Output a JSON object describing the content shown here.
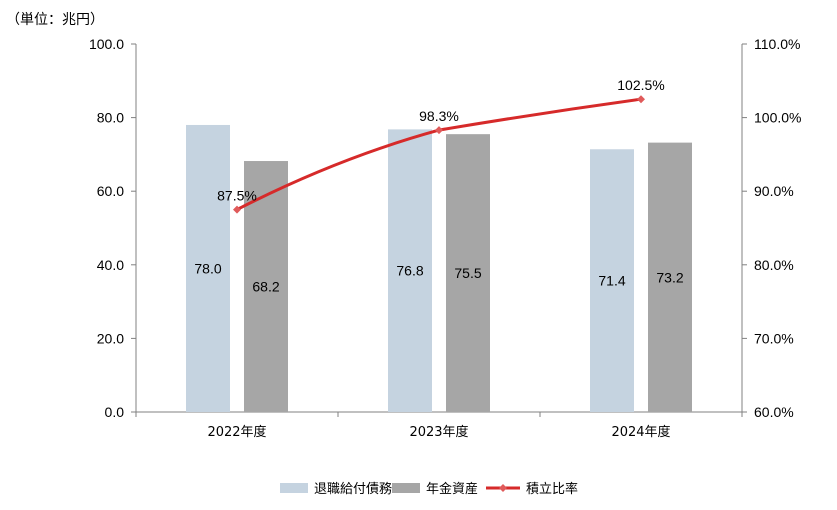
{
  "unit_label": "（単位：兆円）",
  "colors": {
    "series_a": "#c5d3e0",
    "series_b": "#a6a6a6",
    "line": "#d62a2a",
    "marker": "#e05a5a",
    "axis": "#808080",
    "grid": "#d9d9d9"
  },
  "chart_data": {
    "type": "bar+line",
    "categories": [
      "2022年度",
      "2023年度",
      "2024年度"
    ],
    "series": [
      {
        "name": "退職給付債務",
        "values": [
          78.0,
          76.8,
          71.4
        ],
        "axis": "left",
        "type": "bar"
      },
      {
        "name": "年金資産",
        "values": [
          68.2,
          75.5,
          73.2
        ],
        "axis": "left",
        "type": "bar"
      },
      {
        "name": "積立比率",
        "values": [
          87.5,
          98.3,
          102.5
        ],
        "axis": "right",
        "type": "line"
      }
    ],
    "data_labels_bars": [
      [
        "78.0",
        "68.2"
      ],
      [
        "76.8",
        "75.5"
      ],
      [
        "71.4",
        "73.2"
      ]
    ],
    "data_labels_line": [
      "87.5%",
      "98.3%",
      "102.5%"
    ],
    "y_left": {
      "min": 0,
      "max": 100,
      "step": 20,
      "tick_labels": [
        "0.0",
        "20.0",
        "40.0",
        "60.0",
        "80.0",
        "100.0"
      ]
    },
    "y_right": {
      "min": 60,
      "max": 110,
      "step": 10,
      "tick_labels": [
        "60.0%",
        "70.0%",
        "80.0%",
        "90.0%",
        "100.0%",
        "110.0%"
      ]
    },
    "grid": false,
    "legend_position": "bottom"
  }
}
